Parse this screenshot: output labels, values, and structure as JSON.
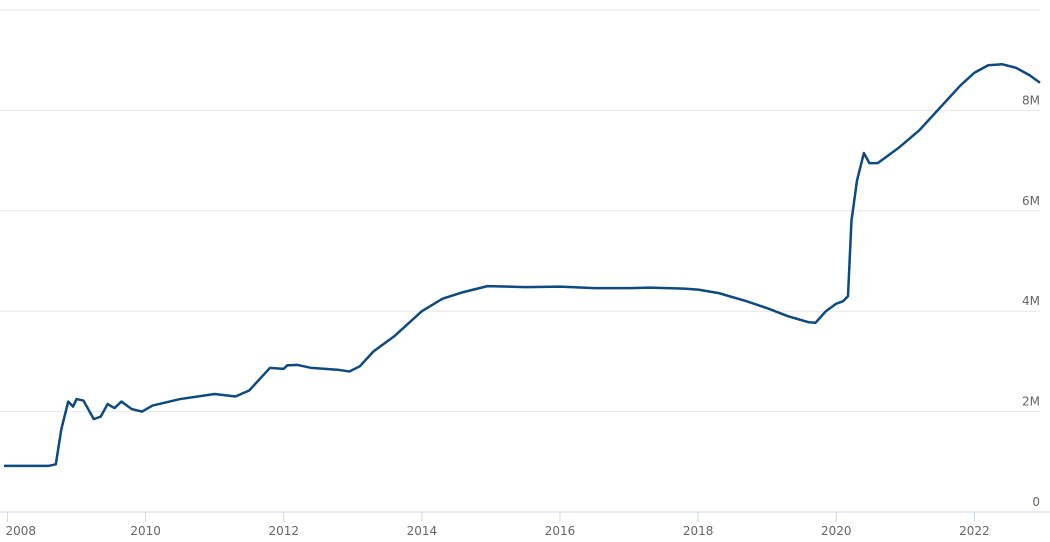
{
  "chart_data": {
    "type": "line",
    "x": [
      2007.95,
      2008.6,
      2008.7,
      2008.78,
      2008.88,
      2008.95,
      2009.0,
      2009.1,
      2009.25,
      2009.35,
      2009.45,
      2009.55,
      2009.65,
      2009.8,
      2009.95,
      2010.1,
      2010.5,
      2011.0,
      2011.3,
      2011.5,
      2011.8,
      2012.0,
      2012.05,
      2012.2,
      2012.4,
      2012.8,
      2012.95,
      2013.1,
      2013.3,
      2013.6,
      2014.0,
      2014.3,
      2014.6,
      2014.95,
      2015.5,
      2016.0,
      2016.5,
      2017.0,
      2017.3,
      2017.8,
      2018.0,
      2018.3,
      2018.7,
      2019.0,
      2019.3,
      2019.6,
      2019.7,
      2019.85,
      2020.0,
      2020.1,
      2020.17,
      2020.22,
      2020.3,
      2020.4,
      2020.48,
      2020.6,
      2020.9,
      2021.2,
      2021.5,
      2021.8,
      2022.0,
      2022.2,
      2022.4,
      2022.6,
      2022.8,
      2022.95
    ],
    "series": [
      {
        "color": "#0d4a80",
        "values": [
          920000,
          920000,
          950000,
          1650000,
          2200000,
          2100000,
          2250000,
          2220000,
          1850000,
          1900000,
          2150000,
          2070000,
          2200000,
          2050000,
          2000000,
          2120000,
          2250000,
          2350000,
          2300000,
          2420000,
          2870000,
          2850000,
          2920000,
          2930000,
          2870000,
          2830000,
          2800000,
          2900000,
          3200000,
          3500000,
          4000000,
          4250000,
          4380000,
          4500000,
          4480000,
          4490000,
          4460000,
          4460000,
          4470000,
          4450000,
          4430000,
          4360000,
          4200000,
          4060000,
          3900000,
          3780000,
          3770000,
          4000000,
          4150000,
          4200000,
          4300000,
          5800000,
          6600000,
          7150000,
          6950000,
          6950000,
          7250000,
          7600000,
          8050000,
          8500000,
          8750000,
          8900000,
          8920000,
          8850000,
          8700000,
          8550000
        ]
      }
    ],
    "xlim": [
      2007.95,
      2022.95
    ],
    "xticks": [
      2008,
      2010,
      2012,
      2014,
      2016,
      2018,
      2020,
      2022
    ],
    "ylim": [
      0,
      10000000
    ],
    "yticks": [
      0,
      {
        "value": 2000000,
        "label": "2M"
      },
      {
        "value": 4000000,
        "label": "4M"
      },
      {
        "value": 6000000,
        "label": "6M"
      },
      {
        "value": 8000000,
        "label": "8M"
      }
    ],
    "grid": true
  }
}
